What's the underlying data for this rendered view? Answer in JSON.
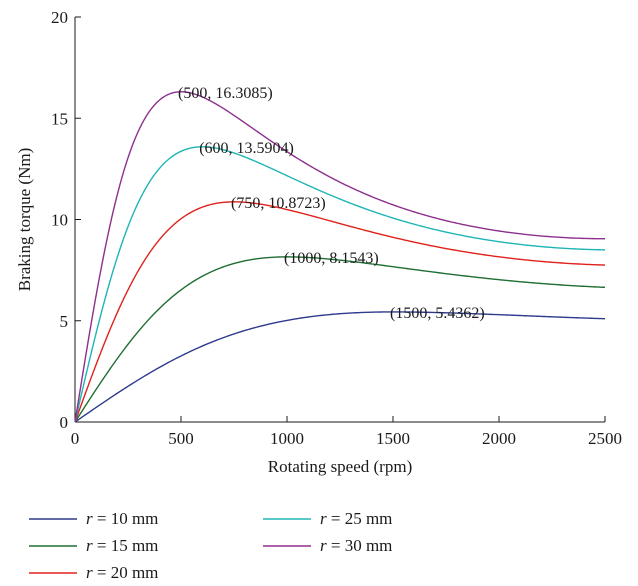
{
  "chart_data": {
    "type": "line",
    "xlabel": "Rotating speed (rpm)",
    "ylabel": "Braking torque (Nm)",
    "xlim": [
      0,
      2500
    ],
    "ylim": [
      0,
      20
    ],
    "x_ticks": [
      "0",
      "500",
      "1000",
      "1500",
      "2000",
      "2500"
    ],
    "y_ticks": [
      "0",
      "5",
      "10",
      "15",
      "20"
    ],
    "grid": false,
    "legend_position": "bottom",
    "series": [
      {
        "name_var": "r",
        "name_rest": "= 10 mm",
        "color": "#2e3a8c",
        "peak_x": 1500,
        "peak_y": 5.4362,
        "end_y": 5.1
      },
      {
        "name_var": "r",
        "name_rest": "= 15 mm",
        "color": "#1f6e33",
        "peak_x": 1000,
        "peak_y": 8.1543,
        "end_y": 6.65
      },
      {
        "name_var": "r",
        "name_rest": "= 20 mm",
        "color": "#e0221c",
        "peak_x": 750,
        "peak_y": 10.8723,
        "end_y": 7.75
      },
      {
        "name_var": "r",
        "name_rest": "= 25 mm",
        "color": "#20b5b5",
        "peak_x": 600,
        "peak_y": 13.5904,
        "end_y": 8.5
      },
      {
        "name_var": "r",
        "name_rest": "= 30 mm",
        "color": "#8e2f8e",
        "peak_x": 500,
        "peak_y": 16.3085,
        "end_y": 9.05
      }
    ],
    "annotations": [
      {
        "text": "(1500, 5.4362)",
        "x": 1500,
        "y": 5.4362
      },
      {
        "text": "(1000, 8.1543)",
        "x": 1000,
        "y": 8.1543
      },
      {
        "text": "(750, 10.8723)",
        "x": 750,
        "y": 10.8723
      },
      {
        "text": "(600, 13.5904)",
        "x": 600,
        "y": 13.5904
      },
      {
        "text": "(500, 16.3085)",
        "x": 500,
        "y": 16.3085
      }
    ]
  }
}
